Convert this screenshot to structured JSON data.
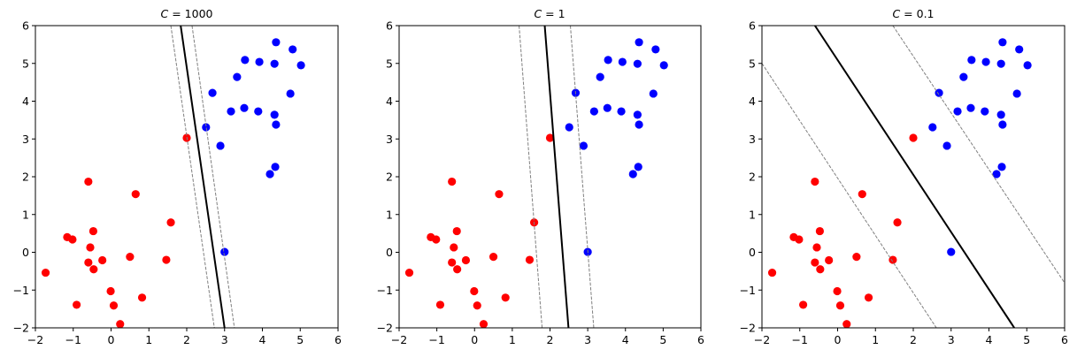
{
  "figure": {
    "background": "#ffffff",
    "red_color": "#ff0000",
    "blue_color": "#0000ff",
    "boundary_color": "#000000",
    "margin_color": "#808080"
  },
  "chart_data": [
    {
      "type": "scatter",
      "title": "C = 1000",
      "title_parts": {
        "var": "C",
        "eq": " = ",
        "val": "1000"
      },
      "xlabel": "",
      "ylabel": "",
      "xlim": [
        -2,
        6
      ],
      "ylim": [
        -2,
        6
      ],
      "xticks": [
        -2,
        -1,
        0,
        1,
        2,
        3,
        4,
        5,
        6
      ],
      "yticks": [
        -2,
        -1,
        0,
        1,
        2,
        3,
        4,
        5,
        6
      ],
      "grid": false,
      "boundary": {
        "p1": [
          1.84,
          6
        ],
        "p2": [
          3.0,
          -2
        ]
      },
      "margin_lower": {
        "p1": [
          1.58,
          6
        ],
        "p2": [
          2.73,
          -2
        ]
      },
      "margin_upper": {
        "p1": [
          2.14,
          6
        ],
        "p2": [
          3.26,
          -2
        ]
      }
    },
    {
      "type": "scatter",
      "title": "C = 1",
      "title_parts": {
        "var": "C",
        "eq": " = ",
        "val": "1"
      },
      "xlabel": "",
      "ylabel": "",
      "xlim": [
        -2,
        6
      ],
      "ylim": [
        -2,
        6
      ],
      "xticks": [
        -2,
        -1,
        0,
        1,
        2,
        3,
        4,
        5,
        6
      ],
      "yticks": [
        -2,
        -1,
        0,
        1,
        2,
        3,
        4,
        5,
        6
      ],
      "grid": false,
      "boundary": {
        "p1": [
          1.86,
          6
        ],
        "p2": [
          2.49,
          -2
        ]
      },
      "margin_lower": {
        "p1": [
          1.18,
          6
        ],
        "p2": [
          1.79,
          -2
        ]
      },
      "margin_upper": {
        "p1": [
          2.54,
          6
        ],
        "p2": [
          3.16,
          -2
        ]
      }
    },
    {
      "type": "scatter",
      "title": "C = 0.1",
      "title_parts": {
        "var": "C",
        "eq": " = ",
        "val": "0.1"
      },
      "xlabel": "",
      "ylabel": "",
      "xlim": [
        -2,
        6
      ],
      "ylim": [
        -2,
        6
      ],
      "xticks": [
        -2,
        -1,
        0,
        1,
        2,
        3,
        4,
        5,
        6
      ],
      "yticks": [
        -2,
        -1,
        0,
        1,
        2,
        3,
        4,
        5,
        6
      ],
      "grid": false,
      "boundary": {
        "p1": [
          -0.6,
          6
        ],
        "p2": [
          4.67,
          -2
        ]
      },
      "margin_lower": {
        "p1": [
          -2,
          5.0
        ],
        "p2": [
          2.61,
          -2
        ]
      },
      "margin_upper": {
        "p1": [
          1.46,
          6
        ],
        "p2": [
          6,
          -0.81
        ]
      }
    }
  ],
  "points": {
    "red": [
      [
        -0.6,
        1.87
      ],
      [
        0.65,
        1.54
      ],
      [
        1.58,
        0.79
      ],
      [
        -0.47,
        0.56
      ],
      [
        -1.16,
        0.4
      ],
      [
        -1.02,
        0.34
      ],
      [
        -0.55,
        0.13
      ],
      [
        -0.6,
        -0.27
      ],
      [
        -0.23,
        -0.21
      ],
      [
        -0.46,
        -0.45
      ],
      [
        0.5,
        -0.12
      ],
      [
        1.46,
        -0.2
      ],
      [
        -1.73,
        -0.54
      ],
      [
        -0.01,
        -1.03
      ],
      [
        0.82,
        -1.2
      ],
      [
        -0.91,
        -1.39
      ],
      [
        0.07,
        -1.41
      ],
      [
        0.24,
        -1.9
      ],
      [
        2.0,
        3.03
      ]
    ],
    "blue": [
      [
        4.36,
        5.56
      ],
      [
        4.8,
        5.37
      ],
      [
        3.54,
        5.09
      ],
      [
        3.92,
        5.04
      ],
      [
        4.32,
        4.99
      ],
      [
        5.02,
        4.95
      ],
      [
        3.33,
        4.64
      ],
      [
        2.68,
        4.22
      ],
      [
        4.74,
        4.2
      ],
      [
        3.17,
        3.73
      ],
      [
        3.52,
        3.82
      ],
      [
        3.89,
        3.73
      ],
      [
        4.32,
        3.64
      ],
      [
        4.36,
        3.38
      ],
      [
        2.51,
        3.31
      ],
      [
        2.89,
        2.82
      ],
      [
        4.34,
        2.26
      ],
      [
        4.2,
        2.07
      ],
      [
        3.0,
        0.01
      ]
    ]
  }
}
